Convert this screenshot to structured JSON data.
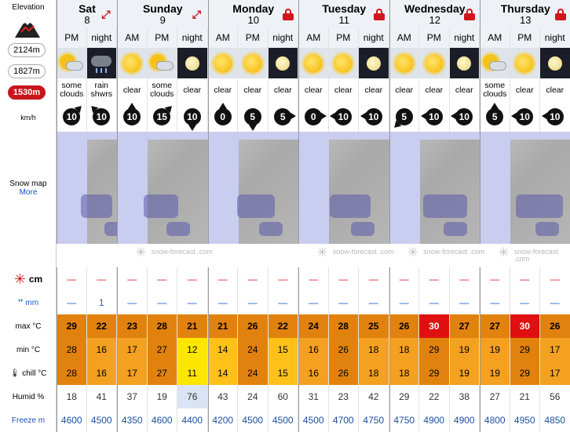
{
  "left_panel": {
    "elevation_title": "Elevation",
    "elevations": [
      "2124m",
      "1827m",
      "1530m"
    ],
    "active_elevation": "1530m",
    "wind_unit": "km/h",
    "snow_map_label": "Snow map",
    "more_label": "More",
    "snow_unit": "cm",
    "rain_unit": "mm",
    "max_label": "max °C",
    "min_label": "min °C",
    "chill_label": "chill °C",
    "humid_label": "Humid %",
    "freeze_label": "Freeze m"
  },
  "days": [
    {
      "name": "Sat",
      "num": "8",
      "badge": "expand-icon"
    },
    {
      "name": "Sunday",
      "num": "9",
      "badge": "expand-icon"
    },
    {
      "name": "Monday",
      "num": "10",
      "badge": "lock-icon"
    },
    {
      "name": "Tuesday",
      "num": "11",
      "badge": "lock-icon"
    },
    {
      "name": "Wednesday",
      "num": "12",
      "badge": "lock-icon"
    },
    {
      "name": "Thursday",
      "num": "13",
      "badge": "lock-icon"
    }
  ],
  "periods": [
    "PM",
    "night",
    "AM",
    "PM",
    "night",
    "AM",
    "PM",
    "night",
    "AM",
    "PM",
    "night",
    "AM",
    "PM",
    "night",
    "AM",
    "PM",
    "night"
  ],
  "weather_icons": [
    "cloud-sun-icon",
    "rain-cloud-icon",
    "sun-icon",
    "cloud-sun-icon",
    "moon-icon",
    "sun-icon",
    "sun-icon",
    "moon-icon",
    "sun-icon",
    "sun-icon",
    "moon-icon",
    "sun-icon",
    "sun-icon",
    "moon-icon",
    "cloud-sun-icon",
    "sun-icon",
    "moon-icon"
  ],
  "summaries": [
    "some clouds",
    "rain shwrs",
    "clear",
    "some clouds",
    "clear",
    "clear",
    "clear",
    "clear",
    "clear",
    "clear",
    "clear",
    "clear",
    "clear",
    "clear",
    "some clouds",
    "clear",
    "clear"
  ],
  "wind_speed": [
    "10",
    "10",
    "10",
    "15",
    "10",
    "0",
    "5",
    "5",
    "0",
    "10",
    "10",
    "5",
    "10",
    "10",
    "5",
    "10",
    "10"
  ],
  "wind_dir": [
    "ne",
    "nw",
    "n",
    "ne",
    "s",
    "n",
    "s",
    "e",
    "e",
    "w",
    "w",
    "sw",
    "w",
    "w",
    "n",
    "w",
    "w"
  ],
  "map_branding": "snow-forecast .com",
  "snow_cm": [
    "—",
    "—",
    "—",
    "—",
    "—",
    "—",
    "—",
    "—",
    "—",
    "—",
    "—",
    "—",
    "—",
    "—",
    "—",
    "—",
    "—"
  ],
  "rain_mm": [
    "—",
    "1",
    "—",
    "—",
    "—",
    "—",
    "—",
    "—",
    "—",
    "—",
    "—",
    "—",
    "—",
    "—",
    "—",
    "—",
    "—"
  ],
  "max_c": [
    "29",
    "22",
    "23",
    "28",
    "21",
    "21",
    "26",
    "22",
    "24",
    "28",
    "25",
    "26",
    "30",
    "27",
    "27",
    "30",
    "26"
  ],
  "min_c": [
    "28",
    "16",
    "17",
    "27",
    "12",
    "14",
    "24",
    "15",
    "16",
    "26",
    "18",
    "18",
    "29",
    "19",
    "19",
    "29",
    "17"
  ],
  "chill_c": [
    "28",
    "16",
    "17",
    "27",
    "11",
    "14",
    "24",
    "15",
    "16",
    "26",
    "18",
    "18",
    "29",
    "19",
    "19",
    "29",
    "17"
  ],
  "humidity": [
    "18",
    "41",
    "37",
    "19",
    "76",
    "43",
    "24",
    "60",
    "31",
    "23",
    "42",
    "29",
    "22",
    "38",
    "27",
    "21",
    "56"
  ],
  "freeze_m": [
    "4600",
    "4500",
    "4350",
    "4600",
    "4400",
    "4200",
    "4500",
    "4500",
    "4500",
    "4700",
    "4750",
    "4750",
    "4900",
    "4900",
    "4800",
    "4950",
    "4850"
  ],
  "colors": {
    "accent_red": "#c8161c",
    "temp_hot": "#e2820e",
    "temp_warm": "#f4a020",
    "temp_mild": "#ffc01a",
    "temp_cool": "#ffe600",
    "temp_extreme": "#e01010"
  }
}
